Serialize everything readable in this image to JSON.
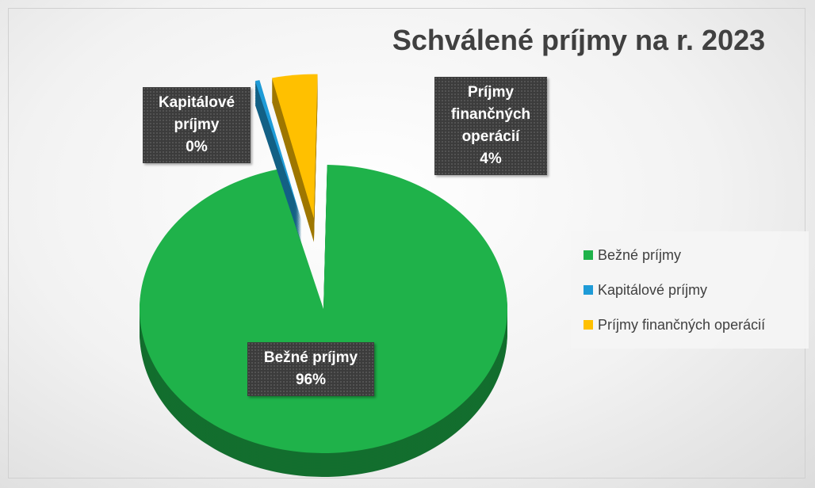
{
  "chart_data": {
    "type": "pie",
    "title": "Schválené príjmy na r. 2023",
    "categories": [
      "Bežné príjmy",
      "Kapitálové príjmy",
      "Príjmy finančných operácií"
    ],
    "values": [
      96,
      0.4,
      4
    ],
    "value_labels": [
      "96%",
      "0%",
      "4%"
    ],
    "colors": [
      "#1fb24a",
      "#1e9bd7",
      "#ffc000"
    ],
    "legend": "right"
  }
}
